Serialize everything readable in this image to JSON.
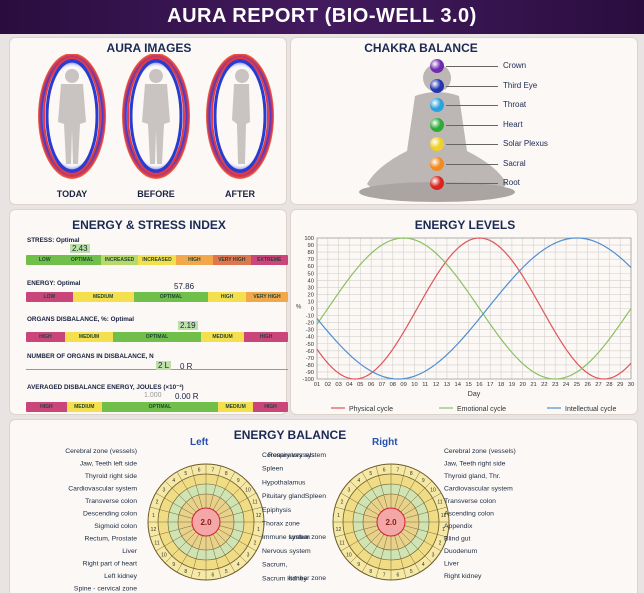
{
  "title": "AURA REPORT (BIO-WELL 3.0)",
  "aura": {
    "heading": "AURA IMAGES",
    "figures": [
      {
        "label": "TODAY"
      },
      {
        "label": "BEFORE"
      },
      {
        "label": "AFTER"
      }
    ]
  },
  "chakra": {
    "heading": "CHAKRA BALANCE",
    "items": [
      {
        "label": "Crown",
        "color": "#6f2bb0"
      },
      {
        "label": "Third Eye",
        "color": "#2335b0"
      },
      {
        "label": "Throat",
        "color": "#2aa2dc"
      },
      {
        "label": "Heart",
        "color": "#2eaa36"
      },
      {
        "label": "Solar Plexus",
        "color": "#f0d02a"
      },
      {
        "label": "Sacral",
        "color": "#f28a1e"
      },
      {
        "label": "Root",
        "color": "#d8261f"
      }
    ]
  },
  "energy_stress": {
    "heading": "ENERGY & STRESS INDEX",
    "stress_label": "STRESS: Optimal",
    "stress_value": "2.43",
    "energy_label": "ENERGY: Optimal",
    "energy_value": "57.86",
    "organs_label": "ORGANS DISBALANCE, %: Optimal",
    "organs_value": "2.19",
    "count_label": "NUMBER OF ORGANS IN DISBALANCE, N",
    "count_left": "2 L",
    "count_right": "0 R",
    "avg_label": "AVERAGED DISBALANCE ENERGY, JOULES (×10⁻²)",
    "avg_left": "1.000",
    "avg_right": "0.00 R",
    "stress_segments": [
      "LOW",
      "OPTIMAL",
      "INCREASED",
      "INCREASED",
      "HIGH",
      "VERY HIGH",
      "EXTREME"
    ],
    "energy_segments": [
      "LOW",
      "MEDIUM",
      "OPTIMAL",
      "HIGH",
      "VERY HIGH"
    ],
    "organs_segments": [
      "HIGH",
      "MEDIUM",
      "OPTIMAL",
      "MEDIUM",
      "HIGH"
    ],
    "avg_segments": [
      "HIGH",
      "MEDIUM",
      "OPTIMAL",
      "MEDIUM",
      "HIGH"
    ],
    "colors": {
      "red": "#c9457a",
      "orange": "#f2a74b",
      "yellow": "#f4df4e",
      "green": "#6fbf4a"
    }
  },
  "energy_levels": {
    "heading": "ENERGY LEVELS"
  },
  "chart_data": {
    "type": "line",
    "title": "ENERGY LEVELS",
    "xlabel": "Day",
    "ylabel": "%",
    "x": [
      1,
      2,
      3,
      4,
      5,
      6,
      7,
      8,
      9,
      10,
      11,
      12,
      13,
      14,
      15,
      16,
      17,
      18,
      19,
      20,
      21,
      22,
      23,
      24,
      25,
      26,
      27,
      28,
      29,
      30
    ],
    "x_tick_labels": [
      "01",
      "02",
      "03",
      "04",
      "05",
      "06",
      "07",
      "08",
      "09",
      "10",
      "11",
      "12",
      "13",
      "14",
      "15",
      "16",
      "17",
      "18",
      "19",
      "20",
      "21",
      "22",
      "23",
      "24",
      "25",
      "26",
      "27",
      "28",
      "29",
      "30"
    ],
    "y_ticks": [
      100,
      90,
      80,
      70,
      60,
      50,
      40,
      30,
      20,
      10,
      0,
      -10,
      -20,
      -30,
      -40,
      -50,
      -60,
      -70,
      -80,
      -90,
      -100
    ],
    "ylim": [
      -100,
      100
    ],
    "xlim": [
      1,
      30
    ],
    "grid": true,
    "legend_position": "bottom",
    "series": [
      {
        "name": "Physical cycle",
        "color": "#e0555b",
        "period": 23,
        "peak_day": 16
      },
      {
        "name": "Emotional cycle",
        "color": "#8cc063",
        "period": 28,
        "peak_day": 9
      },
      {
        "name": "Intellectual cycle",
        "color": "#4f8fd1",
        "period": 33,
        "peak_day": 25
      }
    ]
  },
  "energy_balance": {
    "heading": "ENERGY BALANCE",
    "left_title": "Left",
    "right_title": "Right",
    "left_center": "2.0",
    "right_center": "2.0",
    "left_labels_out": [
      "Cerebral zone (vessels)",
      "Jaw, Teeth left side",
      "Thyroid right side",
      "Cardiovascular system",
      "Transverse colon",
      "Descending colon",
      "Sigmoid colon",
      "Rectum, Prostate",
      "Liver",
      "Right part of heart",
      "Left kidney",
      "Spine - cervical zone"
    ],
    "left_labels_in": [
      "Coronary vessels",
      "Spleen",
      "Hypothalamus",
      "Pituitary gland",
      "Epiphysis",
      "Thorax zone",
      "Immune system",
      "Nervous system",
      "Sacrum,",
      "Sacrum kidney"
    ],
    "right_labels_in": [
      "Respiratory system",
      "Spleen",
      "lumbar zone",
      "lumbar zone"
    ],
    "right_labels_out": [
      "Cerebral zone (vessels)",
      "Jaw, Teeth right side",
      "Thyroid gland, Thr.",
      "Cardiovascular system",
      "Transverse colon",
      "Ascending colon",
      "Appendix",
      "Blind gut",
      "Duodenum",
      "Liver",
      "Right kidney"
    ]
  }
}
